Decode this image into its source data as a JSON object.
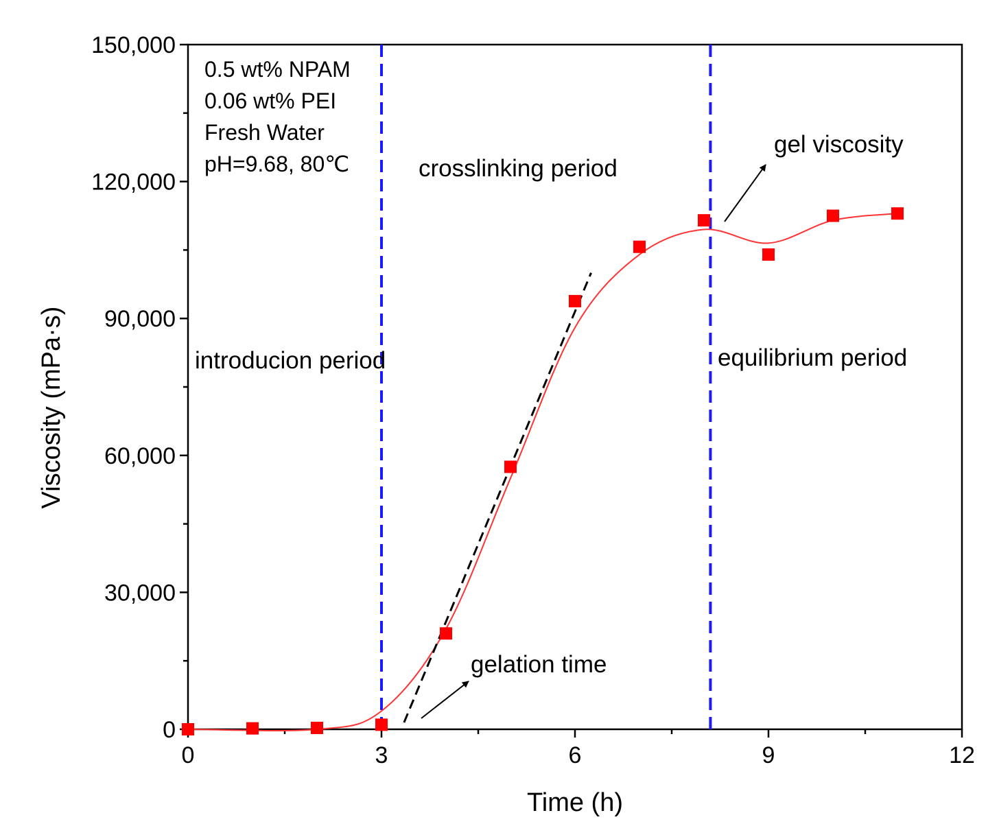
{
  "chart_data": {
    "type": "scatter",
    "title": "",
    "xlabel": "Time (h)",
    "ylabel": "Viscosity (mPa·s)",
    "xlim": [
      0,
      12
    ],
    "ylim": [
      0,
      150000
    ],
    "x_ticks": [
      0,
      3,
      6,
      9,
      12
    ],
    "x_tick_labels": [
      "0",
      "3",
      "6",
      "9",
      "12"
    ],
    "y_ticks": [
      0,
      30000,
      60000,
      90000,
      120000,
      150000
    ],
    "y_tick_labels": [
      "0",
      "30,000",
      "60,000",
      "90,000",
      "120,000",
      "150,000"
    ],
    "grid": false,
    "series": [
      {
        "name": "measured viscosity",
        "marker": "square",
        "color": "#ff0000",
        "x": [
          0,
          1,
          2,
          3,
          4,
          5,
          6,
          7,
          8,
          9,
          10,
          11
        ],
        "y": [
          0,
          200,
          300,
          1000,
          21000,
          57500,
          93800,
          105700,
          111500,
          104000,
          112500,
          113000
        ]
      },
      {
        "name": "fitted curve",
        "type": "smooth-line",
        "color": "#ff3333",
        "x": [
          0,
          2,
          3,
          4,
          5,
          6,
          7,
          8,
          9,
          10,
          11
        ],
        "y": [
          0,
          0,
          4000,
          22000,
          55000,
          88000,
          104000,
          109500,
          106500,
          111500,
          113000
        ]
      },
      {
        "name": "tangent line",
        "type": "dashed-line",
        "color": "#000000",
        "x": [
          3.35,
          6.25
        ],
        "y": [
          1500,
          100000
        ]
      }
    ],
    "reference_lines": [
      {
        "axis": "x",
        "value": 3.0,
        "color": "#1a1aff",
        "style": "dashed"
      },
      {
        "axis": "x",
        "value": 8.1,
        "color": "#1a1aff",
        "style": "dashed"
      }
    ],
    "annotations": {
      "conditions": [
        "0.5 wt% NPAM",
        "0.06 wt% PEI",
        "Fresh Water",
        "pH=9.68, 80℃"
      ],
      "periods": {
        "introduction": "introducion period",
        "crosslinking": "crosslinking period",
        "equilibrium": "equilibrium period"
      },
      "gelation_time": "gelation time",
      "gel_viscosity": "gel viscosity"
    }
  }
}
